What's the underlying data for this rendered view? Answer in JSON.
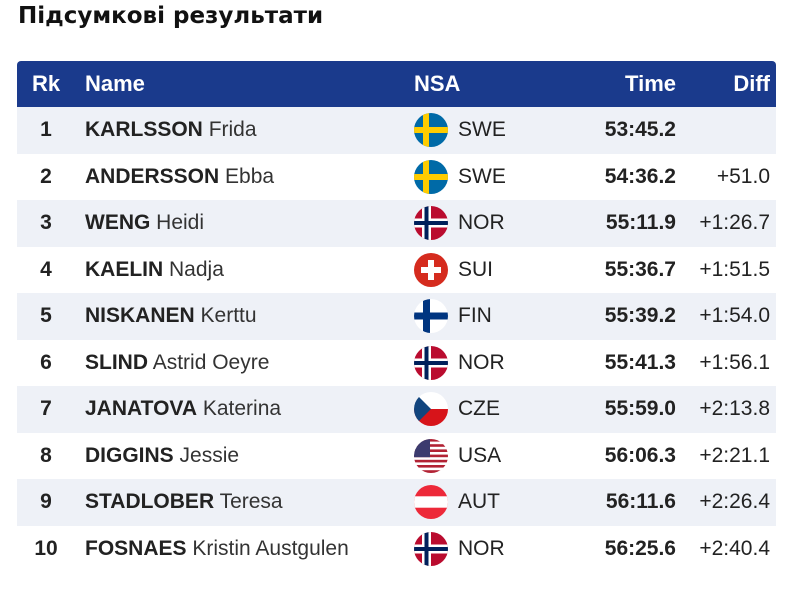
{
  "page": {
    "title": "Підсумкові результати"
  },
  "table": {
    "headers": {
      "rk": "Rk",
      "name": "Name",
      "nsa": "NSA",
      "time": "Time",
      "diff": "Diff"
    },
    "rows": [
      {
        "rk": "1",
        "surname": "KARLSSON",
        "given": "Frida",
        "nsa": "SWE",
        "flag": "swe-flag-icon",
        "time": "53:45.2",
        "diff": ""
      },
      {
        "rk": "2",
        "surname": "ANDERSSON",
        "given": "Ebba",
        "nsa": "SWE",
        "flag": "swe-flag-icon",
        "time": "54:36.2",
        "diff": "+51.0"
      },
      {
        "rk": "3",
        "surname": "WENG",
        "given": "Heidi",
        "nsa": "NOR",
        "flag": "nor-flag-icon",
        "time": "55:11.9",
        "diff": "+1:26.7"
      },
      {
        "rk": "4",
        "surname": "KAELIN",
        "given": "Nadja",
        "nsa": "SUI",
        "flag": "sui-flag-icon",
        "time": "55:36.7",
        "diff": "+1:51.5"
      },
      {
        "rk": "5",
        "surname": "NISKANEN",
        "given": "Kerttu",
        "nsa": "FIN",
        "flag": "fin-flag-icon",
        "time": "55:39.2",
        "diff": "+1:54.0"
      },
      {
        "rk": "6",
        "surname": "SLIND",
        "given": "Astrid Oeyre",
        "nsa": "NOR",
        "flag": "nor-flag-icon",
        "time": "55:41.3",
        "diff": "+1:56.1"
      },
      {
        "rk": "7",
        "surname": "JANATOVA",
        "given": "Katerina",
        "nsa": "CZE",
        "flag": "cze-flag-icon",
        "time": "55:59.0",
        "diff": "+2:13.8"
      },
      {
        "rk": "8",
        "surname": "DIGGINS",
        "given": "Jessie",
        "nsa": "USA",
        "flag": "usa-flag-icon",
        "time": "56:06.3",
        "diff": "+2:21.1"
      },
      {
        "rk": "9",
        "surname": "STADLOBER",
        "given": "Teresa",
        "nsa": "AUT",
        "flag": "aut-flag-icon",
        "time": "56:11.6",
        "diff": "+2:26.4"
      },
      {
        "rk": "10",
        "surname": "FOSNAES",
        "given": "Kristin Austgulen",
        "nsa": "NOR",
        "flag": "nor-flag-icon",
        "time": "56:25.6",
        "diff": "+2:40.4"
      }
    ]
  },
  "colors": {
    "header_bg": "#1a3a8c",
    "row_alt": "#eef1f7"
  }
}
